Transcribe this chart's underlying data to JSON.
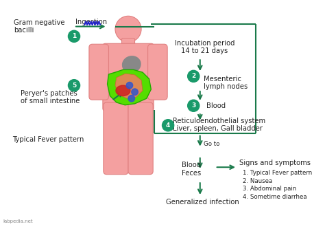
{
  "arrow_color": "#1a7a4a",
  "circle_color": "#1a9a6a",
  "body_color": "#f4a0a0",
  "body_outline": "#e08080",
  "text_color": "#222222",
  "watermark": "labpedia.net",
  "labels": {
    "gram_neg": "Gram negative\nbacilli",
    "ingestion": "Ingestion",
    "incubation": "Incubation period\n14 to 21 days",
    "mesenteric": "Mesenteric\nlymph nodes",
    "blood": "Blood",
    "reticulo": "Reticuloendothelial system\nLiver, spleen, Gall bladder",
    "goto": "Go to",
    "blood_feces": "Blood\nFeces",
    "generalized": "Generalized infection",
    "peryers": "Peryer's patches\nof small intestine",
    "fever": "Typical Fever pattern",
    "signs": "Signs and symptoms",
    "symptom1": "1. Typical Fever pattern",
    "symptom2": "2. Nausea",
    "symptom3": "3. Abdominal pain",
    "symptom4": "4. Sometime diarrhea"
  }
}
